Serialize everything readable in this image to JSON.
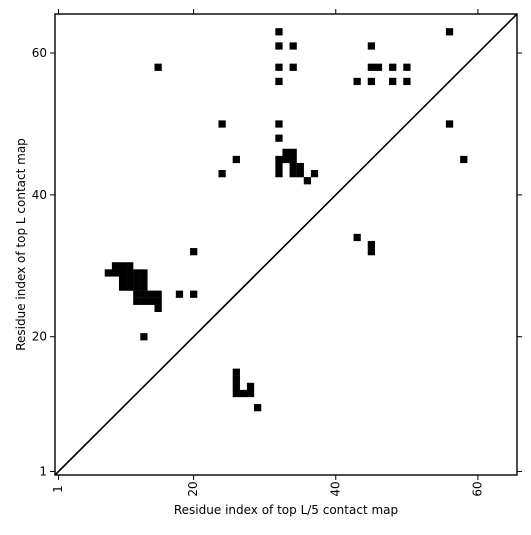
{
  "chart_data": {
    "type": "heatmap",
    "title": "",
    "xlabel": "Residue index of top L/5 contact map",
    "ylabel": "Residue index of top L contact map",
    "xlim": [
      0.5,
      65.5
    ],
    "ylim": [
      0.5,
      65.5
    ],
    "xticks": [
      1,
      20,
      40,
      60
    ],
    "yticks": [
      1,
      20,
      40,
      60
    ],
    "xtick_labels": [
      "1",
      "20",
      "40",
      "60"
    ],
    "ytick_labels": [
      "1",
      "20",
      "40",
      "60"
    ],
    "x_tick_label_rotation": -90,
    "grid": false,
    "diagonal_line": true,
    "cell_color": "#000000",
    "background_color": "#ffffff",
    "cells": [
      [
        32,
        63
      ],
      [
        32,
        61
      ],
      [
        34,
        61
      ],
      [
        32,
        58
      ],
      [
        34,
        58
      ],
      [
        32,
        56
      ],
      [
        15,
        58
      ],
      [
        45,
        61
      ],
      [
        56,
        63
      ],
      [
        43,
        56
      ],
      [
        45,
        58
      ],
      [
        46,
        58
      ],
      [
        48,
        58
      ],
      [
        50,
        58
      ],
      [
        45,
        56
      ],
      [
        48,
        56
      ],
      [
        50,
        56
      ],
      [
        56,
        50
      ],
      [
        58,
        45
      ],
      [
        24,
        50
      ],
      [
        32,
        50
      ],
      [
        32,
        48
      ],
      [
        26,
        45
      ],
      [
        33,
        46
      ],
      [
        34,
        46
      ],
      [
        32,
        45
      ],
      [
        33,
        45
      ],
      [
        34,
        45
      ],
      [
        32,
        44
      ],
      [
        34,
        44
      ],
      [
        35,
        44
      ],
      [
        24,
        43
      ],
      [
        32,
        43
      ],
      [
        34,
        43
      ],
      [
        35,
        43
      ],
      [
        37,
        43
      ],
      [
        36,
        42
      ],
      [
        20,
        32
      ],
      [
        43,
        34
      ],
      [
        45,
        33
      ],
      [
        45,
        32
      ],
      [
        9,
        30
      ],
      [
        10,
        30
      ],
      [
        11,
        30
      ],
      [
        8,
        29
      ],
      [
        9,
        29
      ],
      [
        10,
        29
      ],
      [
        11,
        29
      ],
      [
        12,
        29
      ],
      [
        13,
        29
      ],
      [
        10,
        28
      ],
      [
        11,
        28
      ],
      [
        12,
        28
      ],
      [
        13,
        28
      ],
      [
        10,
        27
      ],
      [
        11,
        27
      ],
      [
        12,
        27
      ],
      [
        13,
        27
      ],
      [
        12,
        26
      ],
      [
        13,
        26
      ],
      [
        14,
        26
      ],
      [
        15,
        26
      ],
      [
        18,
        26
      ],
      [
        20,
        26
      ],
      [
        12,
        25
      ],
      [
        13,
        25
      ],
      [
        14,
        25
      ],
      [
        15,
        25
      ],
      [
        15,
        24
      ],
      [
        13,
        20
      ],
      [
        26,
        15
      ],
      [
        26,
        14
      ],
      [
        26,
        13
      ],
      [
        28,
        13
      ],
      [
        26,
        12
      ],
      [
        27,
        12
      ],
      [
        28,
        12
      ],
      [
        29,
        10
      ]
    ]
  }
}
